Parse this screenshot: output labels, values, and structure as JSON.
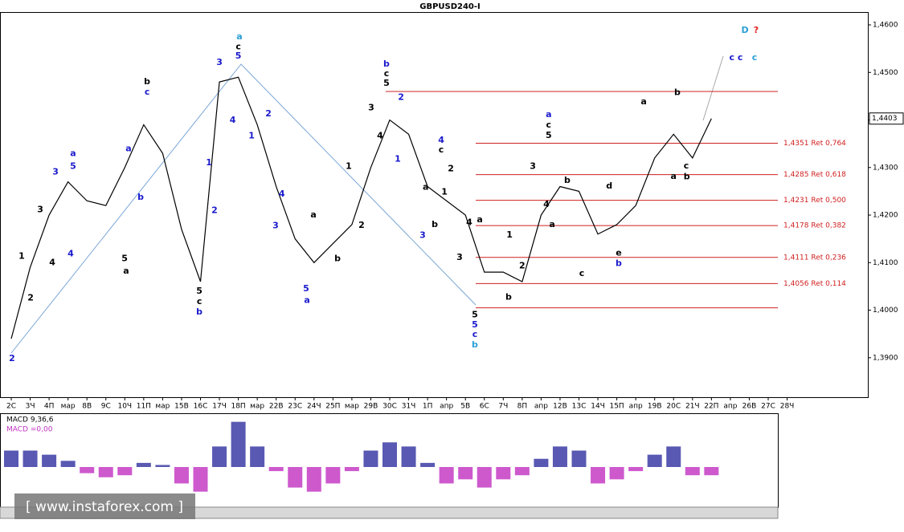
{
  "chart_data": {
    "type": "line",
    "title": "GBPUSD240-I",
    "categories": [
      "2С",
      "3Ч",
      "4П",
      "мар",
      "8В",
      "9С",
      "10Ч",
      "11П",
      "мар",
      "15В",
      "16С",
      "17Ч",
      "18П",
      "мар",
      "22В",
      "23С",
      "24Ч",
      "25П",
      "мар",
      "29В",
      "30С",
      "31Ч",
      "1П",
      "апр",
      "5В",
      "6С",
      "7Ч",
      "8П",
      "апр",
      "12В",
      "13С",
      "14Ч",
      "15П",
      "апр",
      "19В",
      "20С",
      "21Ч",
      "22П",
      "апр",
      "26В",
      "27С",
      "28Ч"
    ],
    "series": [
      {
        "color": "#000000",
        "values": [
          1.394,
          1.409,
          1.42,
          1.427,
          1.423,
          1.422,
          1.43,
          1.439,
          1.433,
          1.417,
          1.406,
          1.448,
          1.449,
          1.439,
          1.426,
          1.415,
          1.41,
          1.414,
          1.418,
          1.43,
          1.44,
          1.437,
          1.426,
          1.423,
          1.42,
          1.408,
          1.408,
          1.406,
          1.42,
          1.426,
          1.425,
          1.416,
          1.418,
          1.422,
          1.432,
          1.437,
          1.432,
          1.4403,
          null,
          null,
          null,
          null
        ]
      }
    ],
    "ylim": [
      1.3817,
      1.4627
    ],
    "yticks": [
      {
        "value": 1.39,
        "label": "1,3900"
      },
      {
        "value": 1.4,
        "label": "1,4000"
      },
      {
        "value": 1.41,
        "label": "1,4100"
      },
      {
        "value": 1.42,
        "label": "1,4200"
      },
      {
        "value": 1.43,
        "label": "1,4300"
      },
      {
        "value": 1.44,
        "label": "1,4400"
      },
      {
        "value": 1.45,
        "label": "1,4500"
      },
      {
        "value": 1.46,
        "label": "1,4600"
      }
    ],
    "current_price": {
      "value": 1.4403,
      "label": "1,4403"
    },
    "retracements": [
      {
        "value": 1.4351,
        "label": "1,4351 Ret 0,764"
      },
      {
        "value": 1.4285,
        "label": "1,4285 Ret 0,618"
      },
      {
        "value": 1.4231,
        "label": "1,4231 Ret 0,500"
      },
      {
        "value": 1.4178,
        "label": "1,4178 Ret 0,382"
      },
      {
        "value": 1.4111,
        "label": "1,4111 Ret 0,236"
      },
      {
        "value": 1.4056,
        "label": "1,4056 Ret 0,114"
      }
    ],
    "levels": [
      1.446,
      1.4005
    ],
    "level_color": "#d02020",
    "annotations": [
      {
        "text": "2",
        "color": "#1a1acc",
        "x": 0.04,
        "y": 1.3898
      },
      {
        "text": "1",
        "color": "#000",
        "x": 0.55,
        "y": 1.4113
      },
      {
        "text": "2",
        "color": "#000",
        "x": 1.02,
        "y": 1.4025
      },
      {
        "text": "3",
        "color": "#000",
        "x": 1.53,
        "y": 1.4211
      },
      {
        "text": "4",
        "color": "#000",
        "x": 2.17,
        "y": 1.41
      },
      {
        "text": "3",
        "color": "#1a1acc",
        "x": 2.34,
        "y": 1.429
      },
      {
        "text": "a",
        "color": "#1a1acc",
        "x": 3.27,
        "y": 1.4329
      },
      {
        "text": "5",
        "color": "#1a1acc",
        "x": 3.27,
        "y": 1.4302
      },
      {
        "text": "4",
        "color": "#1a1acc",
        "x": 3.14,
        "y": 1.4118
      },
      {
        "text": "b",
        "color": "#000",
        "x": 7.18,
        "y": 1.448
      },
      {
        "text": "c",
        "color": "#1a1acc",
        "x": 7.18,
        "y": 1.4458
      },
      {
        "text": "a",
        "color": "#1a1acc",
        "x": 6.2,
        "y": 1.4339
      },
      {
        "text": "b",
        "color": "#1a1acc",
        "x": 6.84,
        "y": 1.4237
      },
      {
        "text": "5",
        "color": "#000",
        "x": 5.99,
        "y": 1.4108
      },
      {
        "text": "a",
        "color": "#000",
        "x": 6.07,
        "y": 1.4082
      },
      {
        "text": "3",
        "color": "#1a1acc",
        "x": 11.0,
        "y": 1.4521
      },
      {
        "text": "a",
        "color": "#2a9fd6",
        "x": 12.06,
        "y": 1.4575
      },
      {
        "text": "c",
        "color": "#000",
        "x": 12.0,
        "y": 1.4554
      },
      {
        "text": "5",
        "color": "#1a1acc",
        "x": 12.0,
        "y": 1.4534
      },
      {
        "text": "4",
        "color": "#1a1acc",
        "x": 11.7,
        "y": 1.4399
      },
      {
        "text": "1",
        "color": "#1a1acc",
        "x": 10.45,
        "y": 1.431
      },
      {
        "text": "2",
        "color": "#1a1acc",
        "x": 10.74,
        "y": 1.4209
      },
      {
        "text": "5",
        "color": "#000",
        "x": 9.94,
        "y": 1.404
      },
      {
        "text": "c",
        "color": "#000",
        "x": 9.94,
        "y": 1.4018
      },
      {
        "text": "b",
        "color": "#1a1acc",
        "x": 9.94,
        "y": 1.3996
      },
      {
        "text": "2",
        "color": "#1a1acc",
        "x": 13.59,
        "y": 1.4413
      },
      {
        "text": "1",
        "color": "#1a1acc",
        "x": 12.7,
        "y": 1.4366
      },
      {
        "text": "3",
        "color": "#1a1acc",
        "x": 13.97,
        "y": 1.4177
      },
      {
        "text": "4",
        "color": "#1a1acc",
        "x": 14.3,
        "y": 1.4244
      },
      {
        "text": "5",
        "color": "#1a1acc",
        "x": 15.58,
        "y": 1.4045
      },
      {
        "text": "a",
        "color": "#1a1acc",
        "x": 15.63,
        "y": 1.402
      },
      {
        "text": "a",
        "color": "#000",
        "x": 15.97,
        "y": 1.42
      },
      {
        "text": "b",
        "color": "#000",
        "x": 17.24,
        "y": 1.4108
      },
      {
        "text": "1",
        "color": "#000",
        "x": 17.83,
        "y": 1.4302
      },
      {
        "text": "2",
        "color": "#000",
        "x": 18.51,
        "y": 1.4178
      },
      {
        "text": "b",
        "color": "#1a1acc",
        "x": 19.83,
        "y": 1.4517
      },
      {
        "text": "c",
        "color": "#000",
        "x": 19.83,
        "y": 1.4497
      },
      {
        "text": "5",
        "color": "#000",
        "x": 19.83,
        "y": 1.4477
      },
      {
        "text": "3",
        "color": "#000",
        "x": 19.02,
        "y": 1.4425
      },
      {
        "text": "4",
        "color": "#000",
        "x": 19.49,
        "y": 1.4366
      },
      {
        "text": "2",
        "color": "#1a1acc",
        "x": 20.6,
        "y": 1.4447
      },
      {
        "text": "1",
        "color": "#1a1acc",
        "x": 20.42,
        "y": 1.4317
      },
      {
        "text": "4",
        "color": "#1a1acc",
        "x": 22.72,
        "y": 1.4357
      },
      {
        "text": "c",
        "color": "#000",
        "x": 22.72,
        "y": 1.4337
      },
      {
        "text": "2",
        "color": "#000",
        "x": 23.23,
        "y": 1.4297
      },
      {
        "text": "1",
        "color": "#000",
        "x": 22.89,
        "y": 1.4248
      },
      {
        "text": "a",
        "color": "#000",
        "x": 21.9,
        "y": 1.4258
      },
      {
        "text": "b",
        "color": "#000",
        "x": 22.38,
        "y": 1.418
      },
      {
        "text": "3",
        "color": "#1a1acc",
        "x": 21.74,
        "y": 1.4157
      },
      {
        "text": "4",
        "color": "#000",
        "x": 24.2,
        "y": 1.4184
      },
      {
        "text": "3",
        "color": "#000",
        "x": 23.69,
        "y": 1.4111
      },
      {
        "text": "5",
        "color": "#000",
        "x": 24.5,
        "y": 1.399
      },
      {
        "text": "5",
        "color": "#1a1acc",
        "x": 24.5,
        "y": 1.3969
      },
      {
        "text": "c",
        "color": "#1a1acc",
        "x": 24.5,
        "y": 1.3949
      },
      {
        "text": "b",
        "color": "#2a9fd6",
        "x": 24.5,
        "y": 1.3927
      },
      {
        "text": "a",
        "color": "#000",
        "x": 24.76,
        "y": 1.419
      },
      {
        "text": "1",
        "color": "#000",
        "x": 26.33,
        "y": 1.4158
      },
      {
        "text": "2",
        "color": "#000",
        "x": 27.0,
        "y": 1.4093
      },
      {
        "text": "b",
        "color": "#000",
        "x": 26.28,
        "y": 1.4027
      },
      {
        "text": "3",
        "color": "#000",
        "x": 27.56,
        "y": 1.4302
      },
      {
        "text": "4",
        "color": "#000",
        "x": 28.28,
        "y": 1.4222
      },
      {
        "text": "a",
        "color": "#1a1acc",
        "x": 28.4,
        "y": 1.4411
      },
      {
        "text": "c",
        "color": "#000",
        "x": 28.4,
        "y": 1.4389
      },
      {
        "text": "5",
        "color": "#000",
        "x": 28.4,
        "y": 1.4367
      },
      {
        "text": "a",
        "color": "#000",
        "x": 28.58,
        "y": 1.418
      },
      {
        "text": "b",
        "color": "#000",
        "x": 29.38,
        "y": 1.4273
      },
      {
        "text": "c",
        "color": "#000",
        "x": 30.15,
        "y": 1.4077
      },
      {
        "text": "d",
        "color": "#000",
        "x": 31.6,
        "y": 1.4261
      },
      {
        "text": "e",
        "color": "#000",
        "x": 32.1,
        "y": 1.412
      },
      {
        "text": "b",
        "color": "#1a1acc",
        "x": 32.1,
        "y": 1.4098
      },
      {
        "text": "a",
        "color": "#000",
        "x": 33.42,
        "y": 1.4438
      },
      {
        "text": "b",
        "color": "#000",
        "x": 35.2,
        "y": 1.4457
      },
      {
        "text": "a",
        "color": "#000",
        "x": 35.0,
        "y": 1.4281
      },
      {
        "text": "c",
        "color": "#000",
        "x": 35.67,
        "y": 1.4303
      },
      {
        "text": "b",
        "color": "#000",
        "x": 35.7,
        "y": 1.428
      },
      {
        "text": "D",
        "color": "#2a9fd6",
        "x": 38.77,
        "y": 1.4588
      },
      {
        "text": "?",
        "color": "#e02020",
        "x": 39.36,
        "y": 1.4588
      },
      {
        "text": "c c",
        "color": "#1a1acc",
        "x": 38.3,
        "y": 1.4531
      },
      {
        "text": "c",
        "color": "#2a9fd6",
        "x": 39.28,
        "y": 1.4531
      }
    ],
    "macd": {
      "label": "MACD 9,36,6",
      "value_label": "MACD =0,00",
      "positive_color": "#3030a0",
      "negative_color": "#c030c0",
      "ylim": [
        -0.0025,
        0.0025
      ],
      "values": [
        0.0008,
        0.0008,
        0.0006,
        0.0003,
        -0.0003,
        -0.0005,
        -0.0004,
        0.0002,
        0.0001,
        -0.0008,
        -0.0012,
        0.001,
        0.0022,
        0.001,
        -0.0002,
        -0.001,
        -0.0012,
        -0.0008,
        -0.0002,
        0.0008,
        0.0012,
        0.001,
        0.0002,
        -0.0008,
        -0.0006,
        -0.001,
        -0.0006,
        -0.0004,
        0.0004,
        0.001,
        0.0008,
        -0.0008,
        -0.0006,
        -0.0002,
        0.0006,
        0.001,
        -0.0004,
        -0.0004
      ]
    },
    "watermark": "[ www.instaforex.com ]"
  }
}
